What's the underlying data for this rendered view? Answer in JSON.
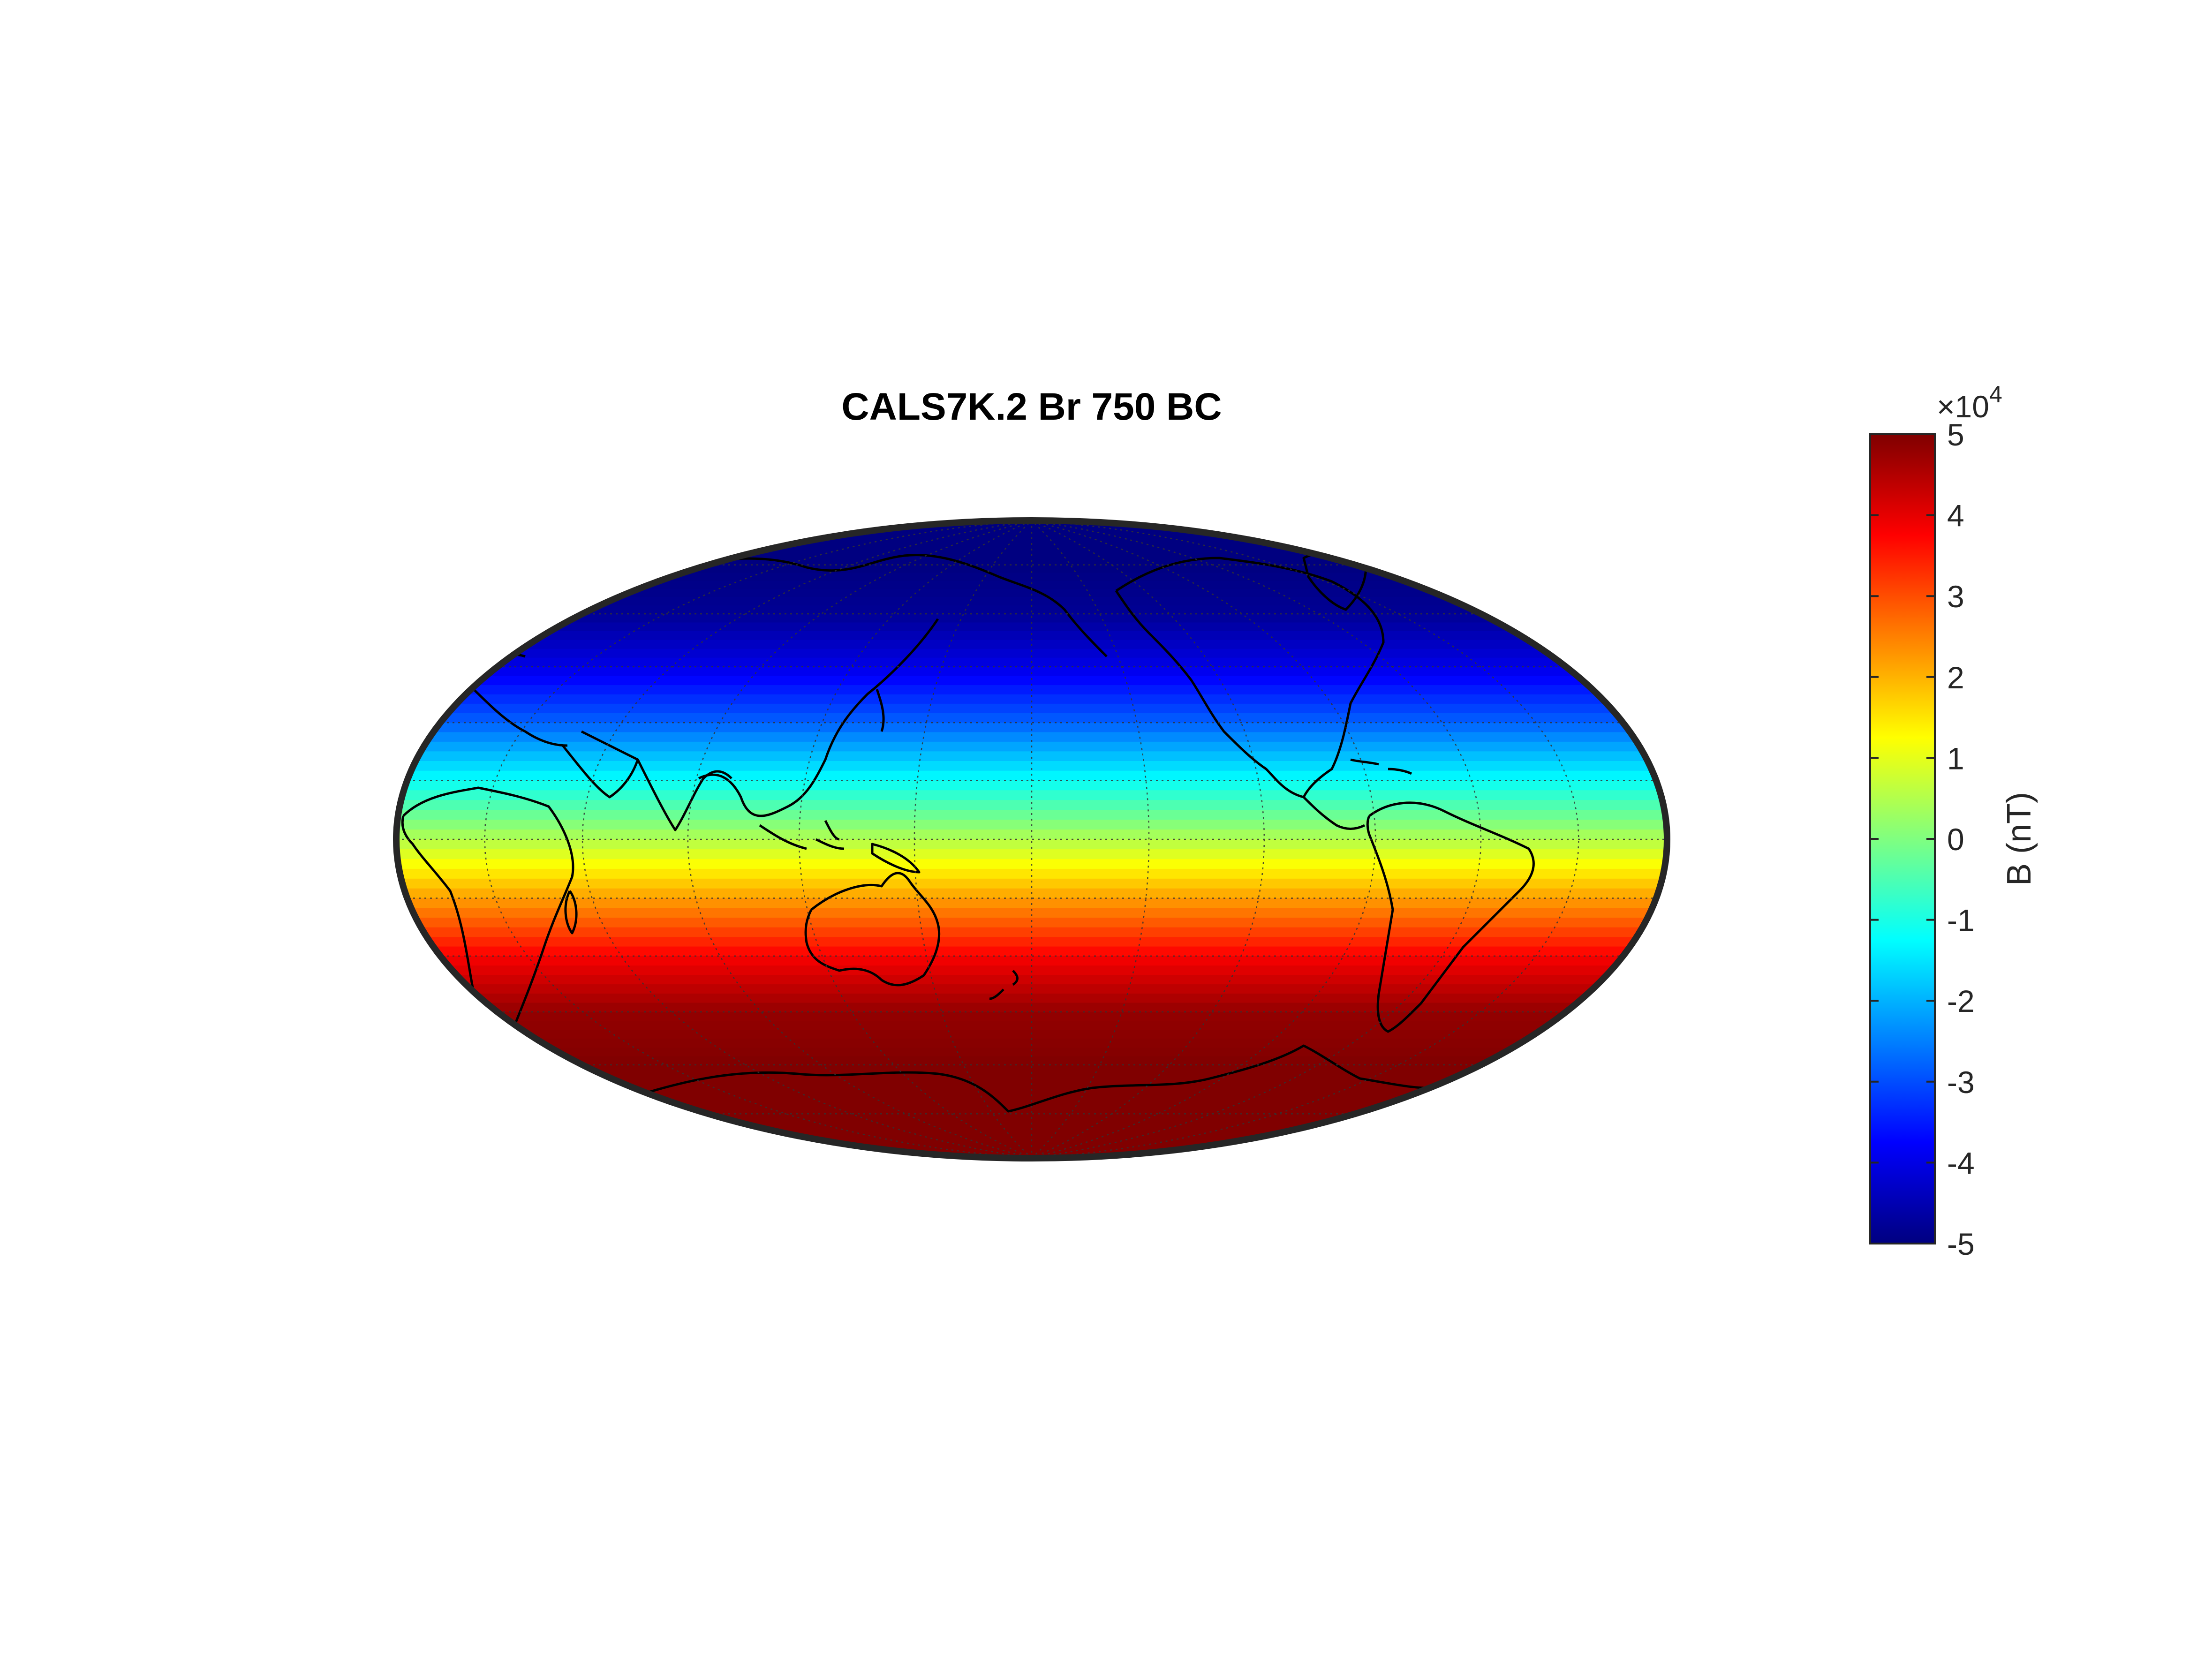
{
  "chart_data": {
    "type": "heatmap",
    "projection": "Hammer / Mollweide (equal-area world map)",
    "title": "CALS7K.2 Br 750 BC",
    "field": "radial magnetic field Br",
    "grid": true,
    "coastlines": true,
    "colormap": "jet",
    "color_limits": [
      -50000,
      50000
    ],
    "colorbar": {
      "location": "right",
      "label": "B (nT)",
      "exponent_label": "×10",
      "exponent_power": "4",
      "ticks": [
        "5",
        "4",
        "3",
        "2",
        "1",
        "0",
        "-1",
        "-2",
        "-3",
        "-4",
        "-5"
      ]
    },
    "latitude_profile": {
      "latitude_deg": [
        90,
        75,
        60,
        45,
        30,
        15,
        0,
        -15,
        -30,
        -45,
        -60,
        -75,
        -90
      ],
      "Br_nT": [
        -50000,
        -50000,
        -48000,
        -40000,
        -28000,
        -12000,
        5000,
        22000,
        38000,
        48000,
        50000,
        50000,
        50000
      ]
    },
    "colors": {
      "frame": "#262626",
      "coastline": "#000000",
      "graticule": "#333333"
    }
  }
}
